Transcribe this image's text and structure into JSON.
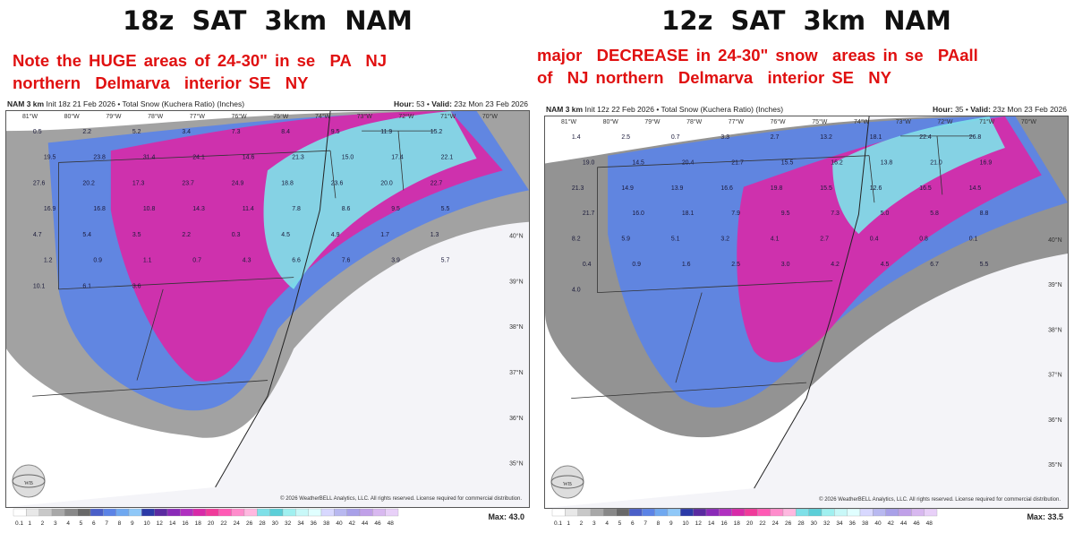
{
  "panels": [
    {
      "headline": "18z  SAT  3km NAM",
      "note_lines": [
        "Note the HUGE areas of 24-30\" in se  PA  NJ",
        "northern  Delmarva  interior SE  NY"
      ],
      "header_left_bold": "NAM 3 km",
      "header_left": "Init 18z 21 Feb 2026 • Total Snow (Kuchera Ratio) (Inches)",
      "header_right_bold_hour": "Hour:",
      "hour": "53",
      "header_right_bold_valid": "Valid:",
      "valid": "23z Mon 23 Feb 2026",
      "copyright": "© 2026 WeatherBELL Analytics, LLC. All rights reserved. License required for commercial distribution.",
      "max_label": "Max:",
      "max_value": "43.0",
      "lat_labels": [
        "40°N",
        "39°N",
        "38°N",
        "37°N",
        "36°N",
        "35°N"
      ],
      "lon_labels": [
        "81°W",
        "80°W",
        "79°W",
        "78°W",
        "77°W",
        "76°W",
        "75°W",
        "74°W",
        "73°W",
        "72°W",
        "71°W",
        "70°W"
      ],
      "values": [
        "0.5",
        "2.2",
        "5.2",
        "3.4",
        "7.3",
        "8.4",
        "9.5",
        "11.9",
        "15.2",
        "19.5",
        "23.8",
        "31.4",
        "24.1",
        "14.6",
        "21.3",
        "15.0",
        "17.4",
        "22.1",
        "27.6",
        "20.2",
        "17.3",
        "23.7",
        "24.9",
        "18.8",
        "23.6",
        "20.0",
        "22.7",
        "16.9",
        "16.8",
        "10.8",
        "14.3",
        "11.4",
        "7.8",
        "8.6",
        "9.5",
        "5.5",
        "4.7",
        "5.4",
        "3.5",
        "2.2",
        "0.3",
        "4.5",
        "4.9",
        "1.7",
        "1.3",
        "1.2",
        "0.9",
        "1.1",
        "0.7",
        "4.3",
        "6.6",
        "7.6",
        "3.9",
        "5.7",
        "10.1",
        "6.1",
        "3.6"
      ]
    },
    {
      "headline": "12z  SAT  3km NAM",
      "note_lines": [
        "major  DECREASE in 24-30\" snow  areas in se  PAall",
        "of  NJ northern  Delmarva  interior SE  NY"
      ],
      "header_left_bold": "NAM 3 km",
      "header_left": "Init 12z 22 Feb 2026 • Total Snow (Kuchera Ratio) (Inches)",
      "header_right_bold_hour": "Hour:",
      "hour": "35",
      "header_right_bold_valid": "Valid:",
      "valid": "23z Mon 23 Feb 2026",
      "copyright": "© 2026 WeatherBELL Analytics, LLC. All rights reserved. License required for commercial distribution.",
      "max_label": "Max:",
      "max_value": "33.5",
      "lat_labels": [
        "40°N",
        "39°N",
        "38°N",
        "37°N",
        "36°N",
        "35°N"
      ],
      "lon_labels": [
        "81°W",
        "80°W",
        "79°W",
        "78°W",
        "77°W",
        "76°W",
        "75°W",
        "74°W",
        "73°W",
        "72°W",
        "71°W",
        "70°W"
      ],
      "values": [
        "1.4",
        "2.5",
        "0.7",
        "3.3",
        "2.7",
        "13.2",
        "18.1",
        "22.4",
        "26.8",
        "19.0",
        "14.5",
        "20.4",
        "21.7",
        "15.5",
        "16.2",
        "13.8",
        "21.0",
        "16.9",
        "21.3",
        "14.9",
        "13.9",
        "16.6",
        "19.8",
        "15.5",
        "12.6",
        "16.5",
        "14.5",
        "21.7",
        "16.0",
        "18.1",
        "7.9",
        "9.5",
        "7.3",
        "5.0",
        "5.8",
        "8.8",
        "8.2",
        "5.9",
        "5.1",
        "3.2",
        "4.1",
        "2.7",
        "0.4",
        "0.8",
        "0.1",
        "0.4",
        "0.9",
        "1.6",
        "2.5",
        "3.0",
        "4.2",
        "4.5",
        "6.7",
        "5.5",
        "4.0"
      ]
    }
  ],
  "legend": {
    "ticks": [
      "0.1",
      "1",
      "2",
      "3",
      "4",
      "5",
      "6",
      "7",
      "8",
      "9",
      "10",
      "12",
      "14",
      "16",
      "18",
      "20",
      "22",
      "24",
      "26",
      "28",
      "30",
      "32",
      "34",
      "36",
      "38",
      "40",
      "42",
      "44",
      "46",
      "48"
    ],
    "colors": [
      "#ffffff",
      "#e8e8e8",
      "#c8c8c8",
      "#a8a8a8",
      "#888888",
      "#686868",
      "#4a5fc8",
      "#5b83e6",
      "#6fa8f0",
      "#8fc8f8",
      "#2b3aa8",
      "#5a2aa0",
      "#8a2ab8",
      "#b030c0",
      "#d82aa8",
      "#f03a9a",
      "#ff5ab5",
      "#ff8ccc",
      "#ffb8e0",
      "#7fe0e8",
      "#5ccfd8",
      "#a0f0f0",
      "#c8f8f8",
      "#e0ffff",
      "#d8d8ff",
      "#b8b8f0",
      "#a8a0e8",
      "#c0a0e8",
      "#d8b8f0",
      "#e8d0f8"
    ]
  }
}
